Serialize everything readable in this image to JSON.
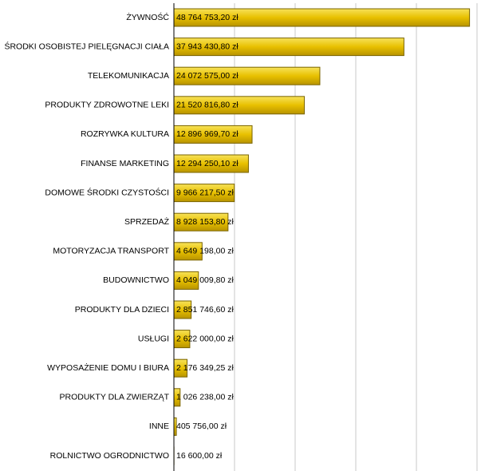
{
  "chart_data": {
    "type": "bar",
    "orientation": "horizontal",
    "color": "#e8c000",
    "categories": [
      "ŻYWNOŚĆ",
      "ŚRODKI OSOBISTEJ PIELĘGNACJI CIAŁA",
      "TELEKOMUNIKACJA",
      "PRODUKTY ZDROWOTNE LEKI",
      "ROZRYWKA KULTURA",
      "FINANSE MARKETING",
      "DOMOWE ŚRODKI CZYSTOŚCI",
      "SPRZEDAŻ",
      "MOTORYZACJA TRANSPORT",
      "BUDOWNICTWO",
      "PRODUKTY DLA DZIECI",
      "USŁUGI",
      "WYPOSAŻENIE DOMU I BIURA",
      "PRODUKTY DLA ZWIERZĄT",
      "INNE",
      "ROLNICTWO OGRODNICTWO"
    ],
    "values": [
      48764753.2,
      37943430.8,
      24072575.0,
      21520816.8,
      12896969.7,
      12294250.1,
      9966217.5,
      8928153.8,
      4649198.0,
      4049009.8,
      2851746.6,
      2622000.0,
      2176349.25,
      1026238.0,
      405756.0,
      16600.0
    ],
    "value_labels": [
      "48 764 753,20 zł",
      "37 943 430,80 zł",
      "24 072 575,00 zł",
      "21 520 816,80 zł",
      "12 896 969,70 zł",
      "12 294 250,10 zł",
      "9 966 217,50 zł",
      "8 928 153,80 zł",
      "4 649 198,00 zł",
      "4 049 009,80 zł",
      "2 851 746,60 zł",
      "2 622 000,00 zł",
      "2 176 349,25 zł",
      "1 026 238,00 zł",
      "405 756,00 zł",
      "16 600,00 zł"
    ],
    "xlim": [
      0,
      50000000
    ],
    "xticks": [
      0,
      10000000,
      20000000,
      30000000,
      40000000,
      50000000
    ],
    "grid": true
  }
}
